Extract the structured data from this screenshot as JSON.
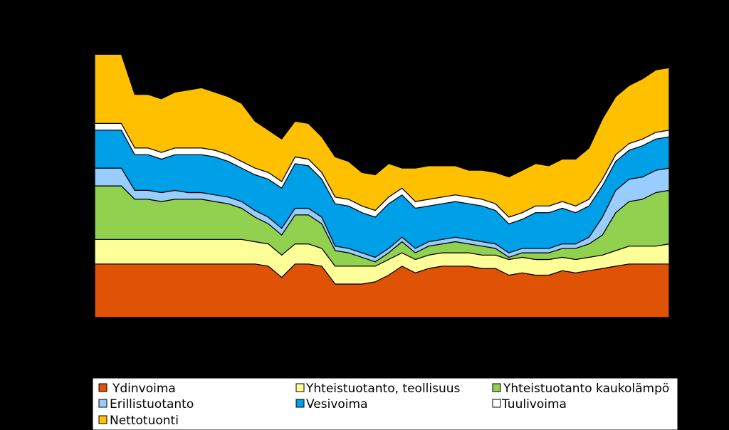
{
  "chart_data": {
    "type": "area",
    "stacked": true,
    "title": "",
    "xlabel": "",
    "ylabel": "",
    "point_count": 44,
    "legend_position": "bottom",
    "series": [
      {
        "name": "Ydinvoima",
        "color": "#E05206",
        "values": [
          2.4,
          2.4,
          2.4,
          2.4,
          2.4,
          2.4,
          2.4,
          2.4,
          2.4,
          2.4,
          2.4,
          2.4,
          2.4,
          2.3,
          1.8,
          2.4,
          2.4,
          2.3,
          1.5,
          1.5,
          1.5,
          1.6,
          1.9,
          2.3,
          2.0,
          2.2,
          2.3,
          2.3,
          2.3,
          2.2,
          2.2,
          1.9,
          2.0,
          1.9,
          1.9,
          2.1,
          2.0,
          2.1,
          2.2,
          2.3,
          2.4,
          2.4,
          2.4,
          2.4
        ]
      },
      {
        "name": "Yhteistuotanto, teollisuus",
        "color": "#FFFF99",
        "values": [
          1.1,
          1.1,
          1.1,
          1.1,
          1.1,
          1.1,
          1.1,
          1.1,
          1.1,
          1.1,
          1.1,
          1.1,
          1.0,
          1.0,
          1.0,
          0.9,
          0.9,
          0.8,
          0.8,
          0.8,
          0.8,
          0.7,
          0.7,
          0.6,
          0.6,
          0.6,
          0.6,
          0.6,
          0.6,
          0.6,
          0.6,
          0.7,
          0.7,
          0.7,
          0.7,
          0.6,
          0.6,
          0.6,
          0.6,
          0.7,
          0.8,
          0.8,
          0.8,
          0.9
        ]
      },
      {
        "name": "Yhteistuotanto kaukolämpö",
        "color": "#92D050",
        "values": [
          2.4,
          2.4,
          2.4,
          1.8,
          1.8,
          1.7,
          1.8,
          1.8,
          1.8,
          1.7,
          1.6,
          1.4,
          1.1,
          0.9,
          0.9,
          1.3,
          1.3,
          1.1,
          0.7,
          0.6,
          0.4,
          0.2,
          0.3,
          0.5,
          0.3,
          0.4,
          0.4,
          0.5,
          0.4,
          0.4,
          0.3,
          0.1,
          0.2,
          0.3,
          0.3,
          0.4,
          0.5,
          0.6,
          0.9,
          1.7,
          2.0,
          2.1,
          2.4,
          2.4
        ]
      },
      {
        "name": "Erillistuotanto",
        "color": "#99CCFF",
        "values": [
          0.8,
          0.8,
          0.8,
          0.4,
          0.4,
          0.4,
          0.4,
          0.3,
          0.3,
          0.3,
          0.3,
          0.3,
          0.3,
          0.3,
          0.3,
          0.3,
          0.3,
          0.3,
          0.2,
          0.2,
          0.2,
          0.2,
          0.2,
          0.2,
          0.2,
          0.2,
          0.2,
          0.2,
          0.2,
          0.2,
          0.2,
          0.2,
          0.2,
          0.2,
          0.2,
          0.2,
          0.2,
          0.3,
          0.8,
          1.0,
          1.0,
          1.0,
          1.0,
          1.0
        ]
      },
      {
        "name": "Vesivoima",
        "color": "#00A0E8",
        "values": [
          1.7,
          1.7,
          1.7,
          1.6,
          1.6,
          1.5,
          1.6,
          1.7,
          1.7,
          1.7,
          1.6,
          1.5,
          1.6,
          1.7,
          1.8,
          2.0,
          1.9,
          1.7,
          1.9,
          1.9,
          1.8,
          1.8,
          2.0,
          1.9,
          1.8,
          1.6,
          1.6,
          1.6,
          1.6,
          1.6,
          1.5,
          1.3,
          1.3,
          1.6,
          1.6,
          1.6,
          1.4,
          1.4,
          1.4,
          1.3,
          1.3,
          1.4,
          1.4,
          1.4
        ]
      },
      {
        "name": "Tuulivoima",
        "color": "#FFFFFF",
        "values": [
          0.3,
          0.3,
          0.3,
          0.3,
          0.3,
          0.3,
          0.3,
          0.3,
          0.3,
          0.3,
          0.3,
          0.3,
          0.3,
          0.3,
          0.3,
          0.3,
          0.3,
          0.3,
          0.3,
          0.3,
          0.3,
          0.3,
          0.3,
          0.3,
          0.3,
          0.3,
          0.3,
          0.3,
          0.3,
          0.3,
          0.3,
          0.3,
          0.3,
          0.3,
          0.3,
          0.3,
          0.3,
          0.3,
          0.3,
          0.3,
          0.3,
          0.3,
          0.3,
          0.3
        ]
      },
      {
        "name": "Nettotuonti",
        "color": "#FFC000",
        "values": [
          3.1,
          3.1,
          3.1,
          2.4,
          2.4,
          2.4,
          2.5,
          2.6,
          2.7,
          2.6,
          2.6,
          2.6,
          2.1,
          1.9,
          1.9,
          1.6,
          1.6,
          1.6,
          1.8,
          1.7,
          1.5,
          1.6,
          1.5,
          0.9,
          1.5,
          1.5,
          1.4,
          1.3,
          1.2,
          1.3,
          1.4,
          1.8,
          1.9,
          1.9,
          1.8,
          1.9,
          2.1,
          2.3,
          2.7,
          2.6,
          2.6,
          2.7,
          2.8,
          2.8
        ]
      }
    ]
  }
}
